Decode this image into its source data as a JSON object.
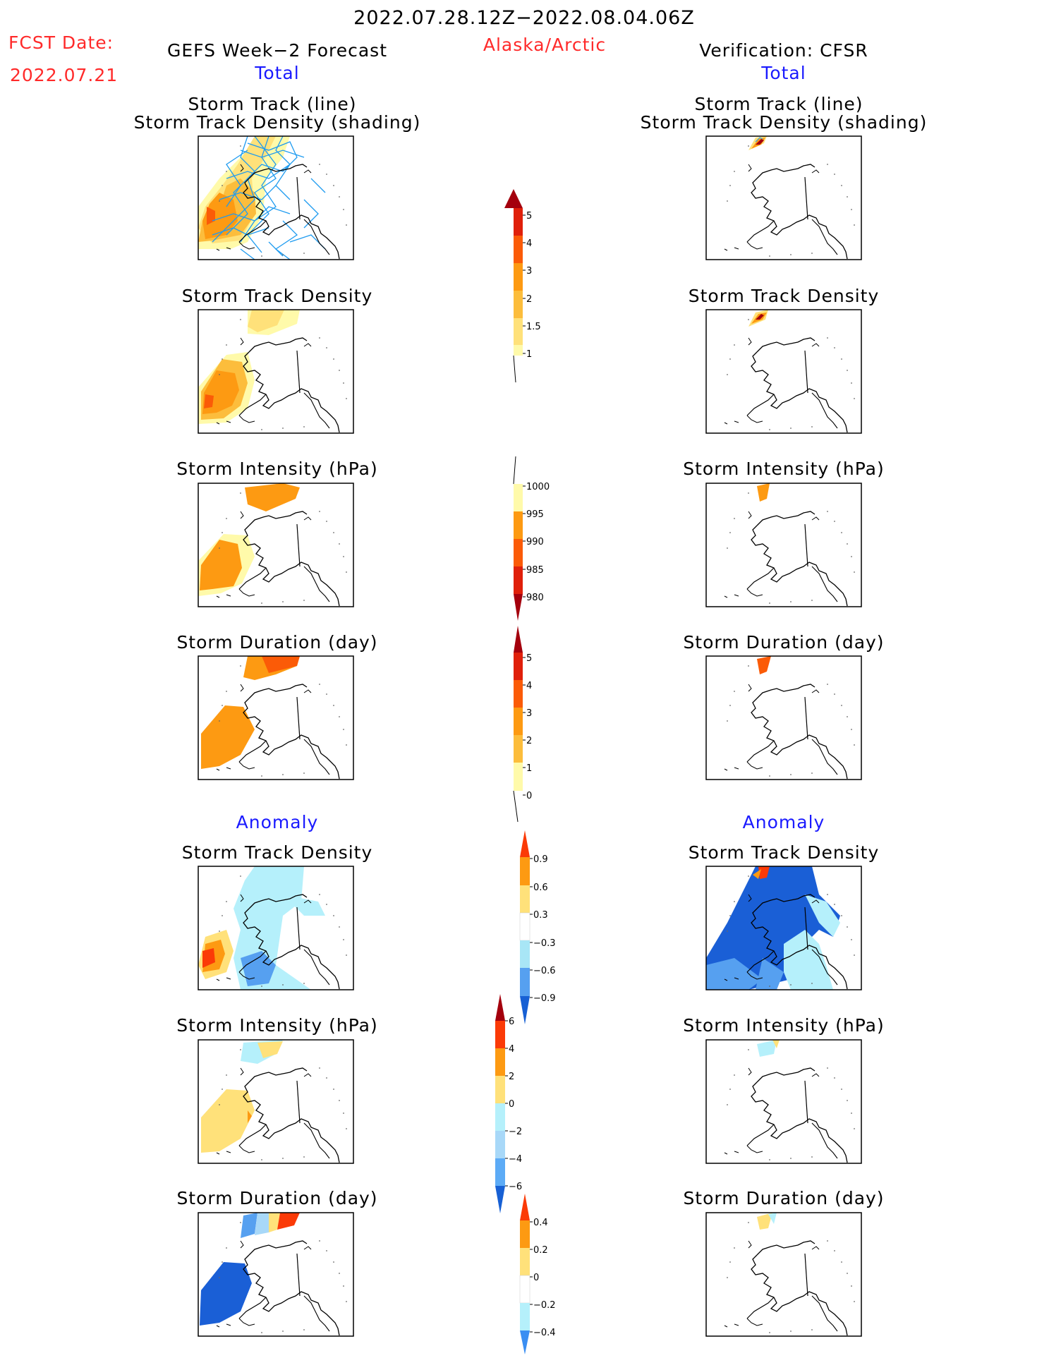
{
  "header": {
    "date_range": "2022.07.28.12Z−2022.08.04.06Z",
    "fcst_label": "FCST Date:",
    "fcst_date": "2022.07.21",
    "left_title": "GEFS Week−2 Forecast",
    "region": "Alaska/Arctic",
    "right_title": "Verification: CFSR",
    "left_sub": "Total",
    "right_sub": "Total",
    "left_anomaly": "Anomaly",
    "right_anomaly": "Anomaly"
  },
  "panels": [
    {
      "side": "left",
      "row": 0,
      "title_lines": [
        "Storm Track (line)",
        "Storm Track Density (shading)"
      ]
    },
    {
      "side": "right",
      "row": 0,
      "title_lines": [
        "Storm Track (line)",
        "Storm Track Density (shading)"
      ]
    },
    {
      "side": "left",
      "row": 1,
      "title_lines": [
        "Storm Track Density"
      ]
    },
    {
      "side": "right",
      "row": 1,
      "title_lines": [
        "Storm Track Density"
      ]
    },
    {
      "side": "left",
      "row": 2,
      "title_lines": [
        "Storm Intensity (hPa)"
      ]
    },
    {
      "side": "right",
      "row": 2,
      "title_lines": [
        "Storm Intensity (hPa)"
      ]
    },
    {
      "side": "left",
      "row": 3,
      "title_lines": [
        "Storm Duration (day)"
      ]
    },
    {
      "side": "right",
      "row": 3,
      "title_lines": [
        "Storm Duration (day)"
      ]
    },
    {
      "side": "left",
      "row": 4,
      "title_lines": [
        "Storm Track Density"
      ]
    },
    {
      "side": "right",
      "row": 4,
      "title_lines": [
        "Storm Track Density"
      ]
    },
    {
      "side": "left",
      "row": 5,
      "title_lines": [
        "Storm Intensity (hPa)"
      ]
    },
    {
      "side": "right",
      "row": 5,
      "title_lines": [
        "Storm Intensity (hPa)"
      ]
    },
    {
      "side": "left",
      "row": 6,
      "title_lines": [
        "Storm Duration (day)"
      ]
    },
    {
      "side": "right",
      "row": 6,
      "title_lines": [
        "Storm Duration (day)"
      ]
    }
  ],
  "colorbars": [
    {
      "name": "track-density",
      "labels": [
        "1",
        "1.5",
        "2",
        "3",
        "4",
        "5"
      ],
      "colors": [
        "#fffaaa",
        "#ffe17a",
        "#fcbd3c",
        "#fd9a12",
        "#fb5b07",
        "#e0200b"
      ],
      "tip": "#a4000d"
    },
    {
      "name": "intensity",
      "labels": [
        "1000",
        "995",
        "990",
        "985",
        "980"
      ],
      "colors": [
        "#fffaaa",
        "#fd9a12",
        "#fb5b07",
        "#e0200b"
      ],
      "tip": "#a4000d",
      "reversed": true
    },
    {
      "name": "duration",
      "labels": [
        "0",
        "1",
        "2",
        "3",
        "4",
        "5"
      ],
      "colors": [
        "#fffaaa",
        "#fcbd3c",
        "#fd9a12",
        "#fb5b07",
        "#e0200b"
      ],
      "tip": "#a4000d"
    },
    {
      "name": "anom-density",
      "labels": [
        "0.9",
        "0.6",
        "0.3",
        "−0.3",
        "−0.6",
        "−0.9"
      ],
      "colors": [
        "#1a5fd6",
        "#56a0f0",
        "#a8e6f6",
        "#ffffff",
        "#ffe17a",
        "#fd9a12"
      ],
      "tip_top": "#fb3a07",
      "tip_bottom": "#1760d4"
    },
    {
      "name": "anom-intensity",
      "labels": [
        "6",
        "4",
        "2",
        "0",
        "−2",
        "−4",
        "−6"
      ],
      "colors": [
        "#2e8ef2",
        "#5cabf6",
        "#a8d8f8",
        "#b5f0fb",
        "#ffe17a",
        "#fd9a12",
        "#fb3a07"
      ],
      "tip_top": "#a4000d",
      "tip_bottom": "#1760d4"
    },
    {
      "name": "anom-duration",
      "labels": [
        "0.4",
        "0.2",
        "0",
        "−0.2",
        "−0.4"
      ],
      "colors": [
        "#3a8ef2",
        "#b5f0fb",
        "#ffffff",
        "#ffe17a",
        "#fd9a12"
      ],
      "tip_top": "#fb3a07",
      "tip_bottom": "#1760d4"
    }
  ],
  "colors": {
    "title_red": "#ff2a2a",
    "title_blue": "#1a1aff",
    "track_line": "#1e9bf0"
  }
}
